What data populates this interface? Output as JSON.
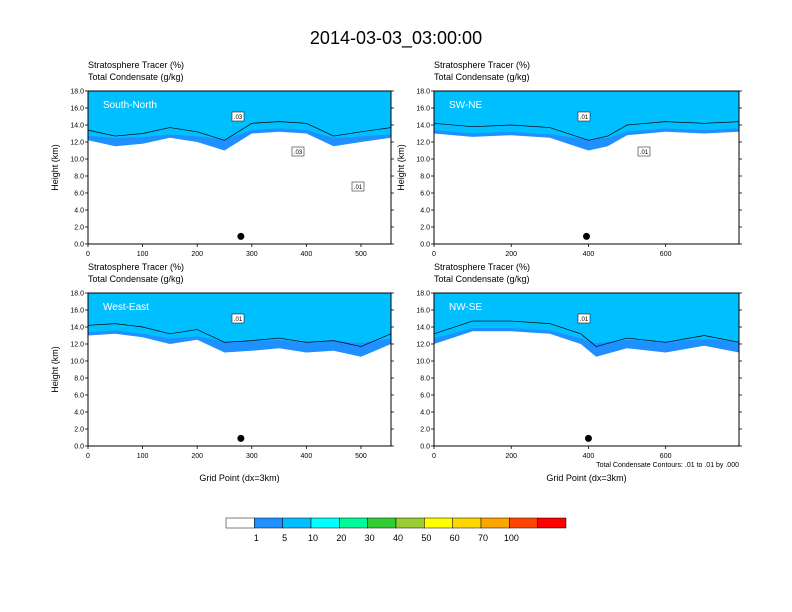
{
  "page": {
    "title": "2014-03-03_03:00:00"
  },
  "colors": {
    "frame": "#000000",
    "contour": "#000000",
    "region_label": "#ffffff"
  },
  "colorbar": {
    "labels": [
      "1",
      "5",
      "10",
      "20",
      "30",
      "40",
      "50",
      "60",
      "70",
      "100"
    ],
    "colors": [
      "#ffffff",
      "#1e90ff",
      "#00bfff",
      "#00ffff",
      "#00fa9a",
      "#32cd32",
      "#9acd32",
      "#ffff00",
      "#ffd700",
      "#ffa500",
      "#ff4500",
      "#ff0000"
    ]
  },
  "chart_data": [
    {
      "type": "heatmap",
      "label": "South-North",
      "line1": "Stratosphere Tracer   (%)",
      "line2": "Total Condensate   (g/kg)",
      "ylabel": "Height (km)",
      "xlabel": "",
      "xlim": [
        0,
        555
      ],
      "xticks": [
        0,
        100,
        200,
        300,
        400,
        500
      ],
      "ylim": [
        0,
        18
      ],
      "yticks": [
        "0.0",
        "2.0",
        "4.0",
        "6.0",
        "8.0",
        "10.0",
        "12.0",
        "14.0",
        "16.0",
        "18.0"
      ],
      "contour_labels": [
        ".03",
        ".03",
        ".01"
      ],
      "marker_x": 280,
      "tracer_profile": [
        [
          0,
          12.2
        ],
        [
          50,
          11.5
        ],
        [
          100,
          11.8
        ],
        [
          150,
          12.5
        ],
        [
          200,
          12.0
        ],
        [
          250,
          11.0
        ],
        [
          300,
          13.0
        ],
        [
          350,
          13.2
        ],
        [
          400,
          13.0
        ],
        [
          450,
          11.5
        ],
        [
          500,
          12.0
        ],
        [
          555,
          12.5
        ]
      ]
    },
    {
      "type": "heatmap",
      "label": "SW-NE",
      "line1": "Stratosphere Tracer   (%)",
      "line2": "Total Condensate   (g/kg)",
      "ylabel": "Height (km)",
      "xlabel": "",
      "xlim": [
        0,
        790
      ],
      "xticks": [
        0,
        200,
        400,
        600
      ],
      "ylim": [
        0,
        18
      ],
      "yticks": [
        "0.0",
        "2.0",
        "4.0",
        "6.0",
        "8.0",
        "10.0",
        "12.0",
        "14.0",
        "16.0",
        "18.0"
      ],
      "contour_labels": [
        ".01",
        ".01"
      ],
      "marker_x": 395,
      "tracer_profile": [
        [
          0,
          13.0
        ],
        [
          100,
          12.6
        ],
        [
          200,
          12.8
        ],
        [
          300,
          12.5
        ],
        [
          400,
          11.0
        ],
        [
          450,
          11.5
        ],
        [
          500,
          12.8
        ],
        [
          600,
          13.2
        ],
        [
          700,
          13.0
        ],
        [
          790,
          13.2
        ]
      ]
    },
    {
      "type": "heatmap",
      "label": "West-East",
      "line1": "Stratosphere Tracer   (%)",
      "line2": "Total Condensate   (g/kg)",
      "ylabel": "Height (km)",
      "xlabel": "Grid Point (dx=3km)",
      "xlim": [
        0,
        555
      ],
      "xticks": [
        0,
        100,
        200,
        300,
        400,
        500
      ],
      "ylim": [
        0,
        18
      ],
      "yticks": [
        "0.0",
        "2.0",
        "4.0",
        "6.0",
        "8.0",
        "10.0",
        "12.0",
        "14.0",
        "16.0",
        "18.0"
      ],
      "contour_labels": [
        ".01"
      ],
      "marker_x": 280,
      "tracer_profile": [
        [
          0,
          13.0
        ],
        [
          50,
          13.2
        ],
        [
          100,
          12.8
        ],
        [
          150,
          12.0
        ],
        [
          200,
          12.5
        ],
        [
          250,
          11.0
        ],
        [
          300,
          11.2
        ],
        [
          350,
          11.5
        ],
        [
          400,
          11.0
        ],
        [
          450,
          11.2
        ],
        [
          500,
          10.5
        ],
        [
          555,
          12.0
        ]
      ]
    },
    {
      "type": "heatmap",
      "label": "NW-SE",
      "line1": "Stratosphere Tracer   (%)",
      "line2": "Total Condensate   (g/kg)",
      "ylabel": "",
      "xlabel": "Grid Point (dx=3km)",
      "xlim": [
        0,
        790
      ],
      "xticks": [
        0,
        200,
        400,
        600
      ],
      "ylim": [
        0,
        18
      ],
      "yticks": [
        "0.0",
        "2.0",
        "4.0",
        "6.0",
        "8.0",
        "10.0",
        "12.0",
        "14.0",
        "16.0",
        "18.0"
      ],
      "contour_labels": [
        ".01"
      ],
      "marker_x": 400,
      "footnote": "Total Condensate Contours: .01 to .01 by .000",
      "tracer_profile": [
        [
          0,
          12.0
        ],
        [
          100,
          13.5
        ],
        [
          200,
          13.5
        ],
        [
          300,
          13.2
        ],
        [
          380,
          12.0
        ],
        [
          420,
          10.5
        ],
        [
          500,
          11.5
        ],
        [
          600,
          11.0
        ],
        [
          700,
          11.8
        ],
        [
          790,
          11.0
        ]
      ]
    }
  ]
}
